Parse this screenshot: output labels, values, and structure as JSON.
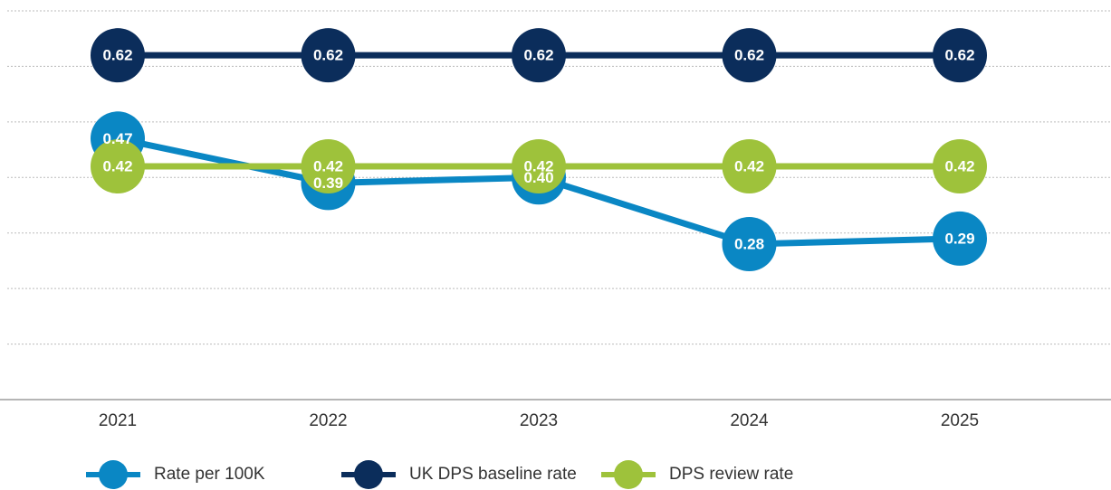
{
  "chart_data": {
    "type": "line",
    "categories": [
      "2021",
      "2022",
      "2023",
      "2024",
      "2025"
    ],
    "series": [
      {
        "name": "Rate per 100K",
        "color": "#0a87c4",
        "values": [
          0.47,
          0.39,
          0.4,
          0.28,
          0.29
        ],
        "value_labels": [
          "0.47",
          "0.39",
          "0.40",
          "0.28",
          "0.29"
        ]
      },
      {
        "name": "UK DPS baseline rate",
        "color": "#0b2d5b",
        "values": [
          0.62,
          0.62,
          0.62,
          0.62,
          0.62
        ],
        "value_labels": [
          "0.62",
          "0.62",
          "0.62",
          "0.62",
          "0.62"
        ]
      },
      {
        "name": "DPS review rate",
        "color": "#9ec23b",
        "values": [
          0.42,
          0.42,
          0.42,
          0.42,
          0.42
        ],
        "value_labels": [
          "0.42",
          "0.42",
          "0.42",
          "0.42",
          "0.42"
        ]
      }
    ],
    "ylim": [
      0,
      0.7
    ],
    "yticks": [
      0,
      0.1,
      0.2,
      0.3,
      0.4,
      0.5,
      0.6,
      0.7
    ],
    "grid": true,
    "legend": "bottom"
  }
}
